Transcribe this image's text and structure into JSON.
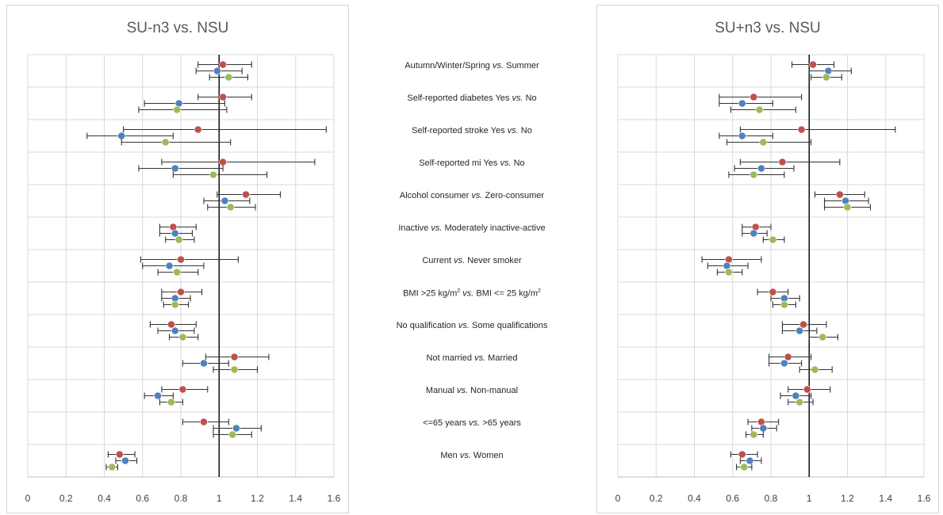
{
  "chart_data": [
    {
      "type": "scatter",
      "subtype": "forest-plot",
      "title": "SU-n3 vs. NSU",
      "xlim": [
        0,
        1.6
      ],
      "xticks": [
        "0",
        "0.2",
        "0.4",
        "0.6",
        "0.8",
        "1",
        "1.2",
        "1.4",
        "1.6"
      ],
      "reference_line": 1,
      "grid": true,
      "colors": [
        "#c0504d",
        "#4f81bd",
        "#9bbb59"
      ],
      "rows": [
        {
          "points": [
            {
              "est": 1.02,
              "lo": 0.89,
              "hi": 1.17
            },
            {
              "est": 0.99,
              "lo": 0.88,
              "hi": 1.12
            },
            {
              "est": 1.05,
              "lo": 0.95,
              "hi": 1.15
            }
          ]
        },
        {
          "points": [
            {
              "est": 1.02,
              "lo": 0.89,
              "hi": 1.17
            },
            {
              "est": 0.79,
              "lo": 0.61,
              "hi": 1.03
            },
            {
              "est": 0.78,
              "lo": 0.58,
              "hi": 1.04
            }
          ]
        },
        {
          "points": [
            {
              "est": 0.89,
              "lo": 0.5,
              "hi": 1.56
            },
            {
              "est": 0.49,
              "lo": 0.31,
              "hi": 0.76
            },
            {
              "est": 0.72,
              "lo": 0.49,
              "hi": 1.06
            }
          ]
        },
        {
          "points": [
            {
              "est": 1.02,
              "lo": 0.7,
              "hi": 1.5
            },
            {
              "est": 0.77,
              "lo": 0.58,
              "hi": 1.02
            },
            {
              "est": 0.97,
              "lo": 0.76,
              "hi": 1.25
            }
          ]
        },
        {
          "points": [
            {
              "est": 1.14,
              "lo": 0.99,
              "hi": 1.32
            },
            {
              "est": 1.03,
              "lo": 0.92,
              "hi": 1.16
            },
            {
              "est": 1.06,
              "lo": 0.94,
              "hi": 1.19
            }
          ]
        },
        {
          "points": [
            {
              "est": 0.76,
              "lo": 0.69,
              "hi": 0.88
            },
            {
              "est": 0.77,
              "lo": 0.69,
              "hi": 0.86
            },
            {
              "est": 0.79,
              "lo": 0.72,
              "hi": 0.87
            }
          ]
        },
        {
          "points": [
            {
              "est": 0.8,
              "lo": 0.59,
              "hi": 1.1
            },
            {
              "est": 0.74,
              "lo": 0.6,
              "hi": 0.92
            },
            {
              "est": 0.78,
              "lo": 0.68,
              "hi": 0.89
            }
          ]
        },
        {
          "points": [
            {
              "est": 0.8,
              "lo": 0.7,
              "hi": 0.91
            },
            {
              "est": 0.77,
              "lo": 0.7,
              "hi": 0.85
            },
            {
              "est": 0.77,
              "lo": 0.71,
              "hi": 0.84
            }
          ]
        },
        {
          "points": [
            {
              "est": 0.75,
              "lo": 0.64,
              "hi": 0.88
            },
            {
              "est": 0.77,
              "lo": 0.68,
              "hi": 0.87
            },
            {
              "est": 0.81,
              "lo": 0.74,
              "hi": 0.89
            }
          ]
        },
        {
          "points": [
            {
              "est": 1.08,
              "lo": 0.93,
              "hi": 1.26
            },
            {
              "est": 0.92,
              "lo": 0.81,
              "hi": 1.05
            },
            {
              "est": 1.08,
              "lo": 0.97,
              "hi": 1.2
            }
          ]
        },
        {
          "points": [
            {
              "est": 0.81,
              "lo": 0.7,
              "hi": 0.94
            },
            {
              "est": 0.68,
              "lo": 0.61,
              "hi": 0.76
            },
            {
              "est": 0.75,
              "lo": 0.69,
              "hi": 0.81
            }
          ]
        },
        {
          "points": [
            {
              "est": 0.92,
              "lo": 0.81,
              "hi": 1.05
            },
            {
              "est": 1.09,
              "lo": 0.97,
              "hi": 1.22
            },
            {
              "est": 1.07,
              "lo": 0.97,
              "hi": 1.17
            }
          ]
        },
        {
          "points": [
            {
              "est": 0.48,
              "lo": 0.42,
              "hi": 0.56
            },
            {
              "est": 0.51,
              "lo": 0.46,
              "hi": 0.57
            },
            {
              "est": 0.44,
              "lo": 0.41,
              "hi": 0.47
            }
          ]
        }
      ]
    },
    {
      "type": "scatter",
      "subtype": "forest-plot",
      "title": "SU+n3 vs. NSU",
      "xlim": [
        0,
        1.6
      ],
      "xticks": [
        "0",
        "0.2",
        "0.4",
        "0.6",
        "0.8",
        "1",
        "1.2",
        "1.4",
        "1.6"
      ],
      "reference_line": 1,
      "grid": true,
      "colors": [
        "#c0504d",
        "#4f81bd",
        "#9bbb59"
      ],
      "rows": [
        {
          "points": [
            {
              "est": 1.02,
              "lo": 0.91,
              "hi": 1.13
            },
            {
              "est": 1.1,
              "lo": 1.0,
              "hi": 1.22
            },
            {
              "est": 1.09,
              "lo": 1.01,
              "hi": 1.17
            }
          ]
        },
        {
          "points": [
            {
              "est": 0.71,
              "lo": 0.53,
              "hi": 0.96
            },
            {
              "est": 0.65,
              "lo": 0.53,
              "hi": 0.81
            },
            {
              "est": 0.74,
              "lo": 0.59,
              "hi": 0.93
            }
          ]
        },
        {
          "points": [
            {
              "est": 0.96,
              "lo": 0.64,
              "hi": 1.45
            },
            {
              "est": 0.65,
              "lo": 0.53,
              "hi": 0.81
            },
            {
              "est": 0.76,
              "lo": 0.57,
              "hi": 1.01
            }
          ]
        },
        {
          "points": [
            {
              "est": 0.86,
              "lo": 0.64,
              "hi": 1.16
            },
            {
              "est": 0.75,
              "lo": 0.61,
              "hi": 0.92
            },
            {
              "est": 0.71,
              "lo": 0.58,
              "hi": 0.87
            }
          ]
        },
        {
          "points": [
            {
              "est": 1.16,
              "lo": 1.03,
              "hi": 1.29
            },
            {
              "est": 1.19,
              "lo": 1.08,
              "hi": 1.31
            },
            {
              "est": 1.2,
              "lo": 1.08,
              "hi": 1.32
            }
          ]
        },
        {
          "points": [
            {
              "est": 0.72,
              "lo": 0.65,
              "hi": 0.8
            },
            {
              "est": 0.71,
              "lo": 0.65,
              "hi": 0.78
            },
            {
              "est": 0.81,
              "lo": 0.76,
              "hi": 0.87
            }
          ]
        },
        {
          "points": [
            {
              "est": 0.58,
              "lo": 0.44,
              "hi": 0.75
            },
            {
              "est": 0.57,
              "lo": 0.47,
              "hi": 0.68
            },
            {
              "est": 0.58,
              "lo": 0.52,
              "hi": 0.65
            }
          ]
        },
        {
          "points": [
            {
              "est": 0.81,
              "lo": 0.73,
              "hi": 0.89
            },
            {
              "est": 0.87,
              "lo": 0.8,
              "hi": 0.95
            },
            {
              "est": 0.87,
              "lo": 0.81,
              "hi": 0.93
            }
          ]
        },
        {
          "points": [
            {
              "est": 0.97,
              "lo": 0.86,
              "hi": 1.09
            },
            {
              "est": 0.95,
              "lo": 0.86,
              "hi": 1.04
            },
            {
              "est": 1.07,
              "lo": 1.0,
              "hi": 1.15
            }
          ]
        },
        {
          "points": [
            {
              "est": 0.89,
              "lo": 0.79,
              "hi": 1.01
            },
            {
              "est": 0.87,
              "lo": 0.79,
              "hi": 0.96
            },
            {
              "est": 1.03,
              "lo": 0.95,
              "hi": 1.12
            }
          ]
        },
        {
          "points": [
            {
              "est": 0.99,
              "lo": 0.89,
              "hi": 1.11
            },
            {
              "est": 0.93,
              "lo": 0.85,
              "hi": 1.01
            },
            {
              "est": 0.95,
              "lo": 0.89,
              "hi": 1.02
            }
          ]
        },
        {
          "points": [
            {
              "est": 0.75,
              "lo": 0.68,
              "hi": 0.84
            },
            {
              "est": 0.76,
              "lo": 0.7,
              "hi": 0.83
            },
            {
              "est": 0.71,
              "lo": 0.67,
              "hi": 0.76
            }
          ]
        },
        {
          "points": [
            {
              "est": 0.65,
              "lo": 0.59,
              "hi": 0.73
            },
            {
              "est": 0.69,
              "lo": 0.64,
              "hi": 0.75
            },
            {
              "est": 0.66,
              "lo": 0.62,
              "hi": 0.7
            }
          ]
        }
      ]
    }
  ],
  "row_labels": [
    {
      "a": "Autumn/Winter/Spring ",
      "vs": "vs.",
      "b": " Summer",
      "b2": "",
      "b3": ""
    },
    {
      "a": "Self-reported diabetes Yes ",
      "vs": "vs.",
      "b": " No",
      "b2": "",
      "b3": ""
    },
    {
      "a": "Self-reported stroke Yes ",
      "vs": "vs.",
      "b": " No",
      "b2": "",
      "b3": ""
    },
    {
      "a": "Self-reported mi Yes ",
      "vs": "vs.",
      "b": " No",
      "b2": "",
      "b3": ""
    },
    {
      "a": "Alcohol consumer ",
      "vs": "vs.",
      "b": " Zero-consumer",
      "b2": "",
      "b3": ""
    },
    {
      "a": "Inactive ",
      "vs": "vs.",
      "b": " Moderately inactive-active",
      "b2": "",
      "b3": ""
    },
    {
      "a": "Current ",
      "vs": "vs.",
      "b": " Never smoker",
      "b2": "",
      "b3": ""
    },
    {
      "a": "BMI >25 kg/m",
      "sup1": "2",
      "vs": " vs.",
      "b": " BMI <= 25 kg/m",
      "sup2": "2",
      "b2": "",
      "b3": ""
    },
    {
      "a": "No qualification ",
      "vs": "vs.",
      "b": " Some qualifications",
      "b2": "",
      "b3": ""
    },
    {
      "a": "Not married ",
      "vs": "vs.",
      "b": " Married",
      "b2": "",
      "b3": ""
    },
    {
      "a": "Manual ",
      "vs": "vs.",
      "b": " Non-manual",
      "b2": "",
      "b3": ""
    },
    {
      "a": "<=65 years ",
      "vs": "vs.",
      "b": " >65 years",
      "b2": "",
      "b3": ""
    },
    {
      "a": "Men ",
      "vs": "vs.",
      "b": " Women",
      "b2": "",
      "b3": ""
    }
  ]
}
